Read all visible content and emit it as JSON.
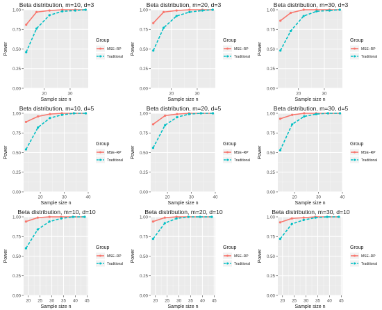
{
  "chart_data": [
    {
      "type": "line",
      "title": "Beta distribution, m=10, d=3",
      "xlabel": "Sample size n",
      "ylabel": "Power",
      "xlim": [
        12,
        37
      ],
      "ylim": [
        0,
        1
      ],
      "xticks": [
        20,
        30
      ],
      "yticks": [
        0.0,
        0.25,
        0.5,
        0.75,
        1.0
      ],
      "yticklabels": [
        "0.00",
        "0.25",
        "0.50",
        "0.75",
        "1.00"
      ],
      "legend_title": "Group",
      "legend_position": "right",
      "series": [
        {
          "name": "MSE–RP",
          "color": "#F8766D",
          "x": [
            13,
            17,
            22,
            27,
            32,
            36
          ],
          "y": [
            0.81,
            0.97,
            0.99,
            1.0,
            1.0,
            1.0
          ]
        },
        {
          "name": "Traditional",
          "color": "#00BFC4",
          "x": [
            13,
            17,
            22,
            27,
            32,
            36
          ],
          "y": [
            0.46,
            0.76,
            0.93,
            0.98,
            0.99,
            1.0
          ]
        }
      ]
    },
    {
      "type": "line",
      "title": "Beta distribution, m=20, d=3",
      "xlabel": "Sample size n",
      "ylabel": "Power",
      "xlim": [
        12,
        37
      ],
      "ylim": [
        0,
        1
      ],
      "xticks": [
        20,
        30
      ],
      "yticks": [
        0.0,
        0.25,
        0.5,
        0.75,
        1.0
      ],
      "yticklabels": [
        "0.00",
        "0.25",
        "0.50",
        "0.75",
        "1.00"
      ],
      "legend_title": "Group",
      "legend_position": "right",
      "series": [
        {
          "name": "MSE–RP",
          "color": "#F8766D",
          "x": [
            13,
            17,
            22,
            27,
            32,
            36
          ],
          "y": [
            0.83,
            0.97,
            0.99,
            1.0,
            1.0,
            1.0
          ]
        },
        {
          "name": "Traditional",
          "color": "#00BFC4",
          "x": [
            13,
            17,
            22,
            27,
            32,
            36
          ],
          "y": [
            0.48,
            0.77,
            0.92,
            0.97,
            0.99,
            1.0
          ]
        }
      ]
    },
    {
      "type": "line",
      "title": "Beta distribution, m=30, d=3",
      "xlabel": "Sample size n",
      "ylabel": "Power",
      "xlim": [
        12,
        37
      ],
      "ylim": [
        0,
        1
      ],
      "xticks": [
        20,
        30
      ],
      "yticks": [
        0.0,
        0.25,
        0.5,
        0.75,
        1.0
      ],
      "yticklabels": [
        "0.00",
        "0.25",
        "0.50",
        "0.75",
        "1.00"
      ],
      "legend_title": "Group",
      "legend_position": "right",
      "series": [
        {
          "name": "MSE–RP",
          "color": "#F8766D",
          "x": [
            13,
            17,
            22,
            27,
            32,
            36
          ],
          "y": [
            0.86,
            0.96,
            1.0,
            1.0,
            1.0,
            1.0
          ]
        },
        {
          "name": "Traditional",
          "color": "#00BFC4",
          "x": [
            13,
            17,
            22,
            27,
            32,
            36
          ],
          "y": [
            0.48,
            0.73,
            0.92,
            0.98,
            0.99,
            1.0
          ]
        }
      ]
    },
    {
      "type": "line",
      "title": "Beta distribution, m=10, d=5",
      "xlabel": "Sample size n",
      "ylabel": "Power",
      "xlim": [
        13,
        40
      ],
      "ylim": [
        0,
        1
      ],
      "xticks": [
        20,
        30,
        40
      ],
      "yticks": [
        0.0,
        0.25,
        0.5,
        0.75,
        1.0
      ],
      "yticklabels": [
        "0.00",
        "0.25",
        "0.50",
        "0.75",
        "1.00"
      ],
      "legend_title": "Group",
      "legend_position": "right",
      "series": [
        {
          "name": "MSE–RP",
          "color": "#F8766D",
          "x": [
            14,
            19,
            24,
            29,
            34,
            39
          ],
          "y": [
            0.89,
            0.96,
            0.99,
            1.0,
            1.0,
            1.0
          ]
        },
        {
          "name": "Traditional",
          "color": "#00BFC4",
          "x": [
            14,
            19,
            24,
            29,
            34,
            39
          ],
          "y": [
            0.54,
            0.82,
            0.94,
            0.98,
            1.0,
            1.0
          ]
        }
      ]
    },
    {
      "type": "line",
      "title": "Beta distribution, m=20, d=5",
      "xlabel": "Sample size n",
      "ylabel": "Power",
      "xlim": [
        13,
        40
      ],
      "ylim": [
        0,
        1
      ],
      "xticks": [
        20,
        30,
        40
      ],
      "yticks": [
        0.0,
        0.25,
        0.5,
        0.75,
        1.0
      ],
      "yticklabels": [
        "0.00",
        "0.25",
        "0.50",
        "0.75",
        "1.00"
      ],
      "legend_title": "Group",
      "legend_position": "right",
      "series": [
        {
          "name": "MSE–RP",
          "color": "#F8766D",
          "x": [
            14,
            19,
            24,
            29,
            34,
            39
          ],
          "y": [
            0.86,
            0.97,
            0.99,
            1.0,
            1.0,
            1.0
          ]
        },
        {
          "name": "Traditional",
          "color": "#00BFC4",
          "x": [
            14,
            19,
            24,
            29,
            34,
            39
          ],
          "y": [
            0.56,
            0.85,
            0.95,
            0.99,
            1.0,
            1.0
          ]
        }
      ]
    },
    {
      "type": "line",
      "title": "Beta distribution, m=30, d=5",
      "xlabel": "Sample size n",
      "ylabel": "Power",
      "xlim": [
        13,
        40
      ],
      "ylim": [
        0,
        1
      ],
      "xticks": [
        20,
        30,
        40
      ],
      "yticks": [
        0.0,
        0.25,
        0.5,
        0.75,
        1.0
      ],
      "yticklabels": [
        "0.00",
        "0.25",
        "0.50",
        "0.75",
        "1.00"
      ],
      "legend_title": "Group",
      "legend_position": "right",
      "series": [
        {
          "name": "MSE–RP",
          "color": "#F8766D",
          "x": [
            14,
            19,
            24,
            29,
            34,
            39
          ],
          "y": [
            0.93,
            0.98,
            1.0,
            1.0,
            1.0,
            1.0
          ]
        },
        {
          "name": "Traditional",
          "color": "#00BFC4",
          "x": [
            14,
            19,
            24,
            29,
            34,
            39
          ],
          "y": [
            0.53,
            0.86,
            0.96,
            0.99,
            1.0,
            1.0
          ]
        }
      ]
    },
    {
      "type": "line",
      "title": "Beta distribution, m=10, d=10",
      "xlabel": "Sample size n",
      "ylabel": "Power",
      "xlim": [
        18,
        45.5
      ],
      "ylim": [
        0,
        1
      ],
      "xticks": [
        20,
        25,
        30,
        35,
        40,
        45
      ],
      "yticks": [
        0.0,
        0.25,
        0.5,
        0.75,
        1.0
      ],
      "yticklabels": [
        "0.00",
        "0.25",
        "0.50",
        "0.75",
        "1.00"
      ],
      "legend_title": "Group",
      "legend_position": "right",
      "series": [
        {
          "name": "MSE–RP",
          "color": "#F8766D",
          "x": [
            19,
            24,
            29,
            34,
            39,
            44
          ],
          "y": [
            0.94,
            0.99,
            1.0,
            1.0,
            1.0,
            1.0
          ]
        },
        {
          "name": "Traditional",
          "color": "#00BFC4",
          "x": [
            19,
            24,
            29,
            34,
            39,
            44
          ],
          "y": [
            0.6,
            0.84,
            0.94,
            0.98,
            1.0,
            1.0
          ]
        }
      ]
    },
    {
      "type": "line",
      "title": "Beta distribution, m=20, d=10",
      "xlabel": "Sample size n",
      "ylabel": "Power",
      "xlim": [
        18,
        45.5
      ],
      "ylim": [
        0,
        1
      ],
      "xticks": [
        20,
        25,
        30,
        35,
        40,
        45
      ],
      "yticks": [
        0.0,
        0.25,
        0.5,
        0.75,
        1.0
      ],
      "yticklabels": [
        "0.00",
        "0.25",
        "0.50",
        "0.75",
        "1.00"
      ],
      "legend_title": "Group",
      "legend_position": "right",
      "series": [
        {
          "name": "MSE–RP",
          "color": "#F8766D",
          "x": [
            19,
            24,
            29,
            34,
            39,
            44
          ],
          "y": [
            0.94,
            0.99,
            1.0,
            1.0,
            1.0,
            1.0
          ]
        },
        {
          "name": "Traditional",
          "color": "#00BFC4",
          "x": [
            19,
            24,
            29,
            34,
            39,
            44
          ],
          "y": [
            0.72,
            0.92,
            0.98,
            1.0,
            1.0,
            1.0
          ]
        }
      ]
    },
    {
      "type": "line",
      "title": "Beta distribution, m=30, d=10",
      "xlabel": "Sample size n",
      "ylabel": "Power",
      "xlim": [
        18,
        45.5
      ],
      "ylim": [
        0,
        1
      ],
      "xticks": [
        20,
        25,
        30,
        35,
        40,
        45
      ],
      "yticks": [
        0.0,
        0.25,
        0.5,
        0.75,
        1.0
      ],
      "yticklabels": [
        "0.00",
        "0.25",
        "0.50",
        "0.75",
        "1.00"
      ],
      "legend_title": "Group",
      "legend_position": "right",
      "series": [
        {
          "name": "MSE–RP",
          "color": "#F8766D",
          "x": [
            19,
            24,
            29,
            34,
            39,
            44
          ],
          "y": [
            0.93,
            0.98,
            0.99,
            1.0,
            1.0,
            1.0
          ]
        },
        {
          "name": "Traditional",
          "color": "#00BFC4",
          "x": [
            19,
            24,
            29,
            34,
            39,
            44
          ],
          "y": [
            0.72,
            0.91,
            0.96,
            0.99,
            1.0,
            1.0
          ]
        }
      ]
    }
  ]
}
